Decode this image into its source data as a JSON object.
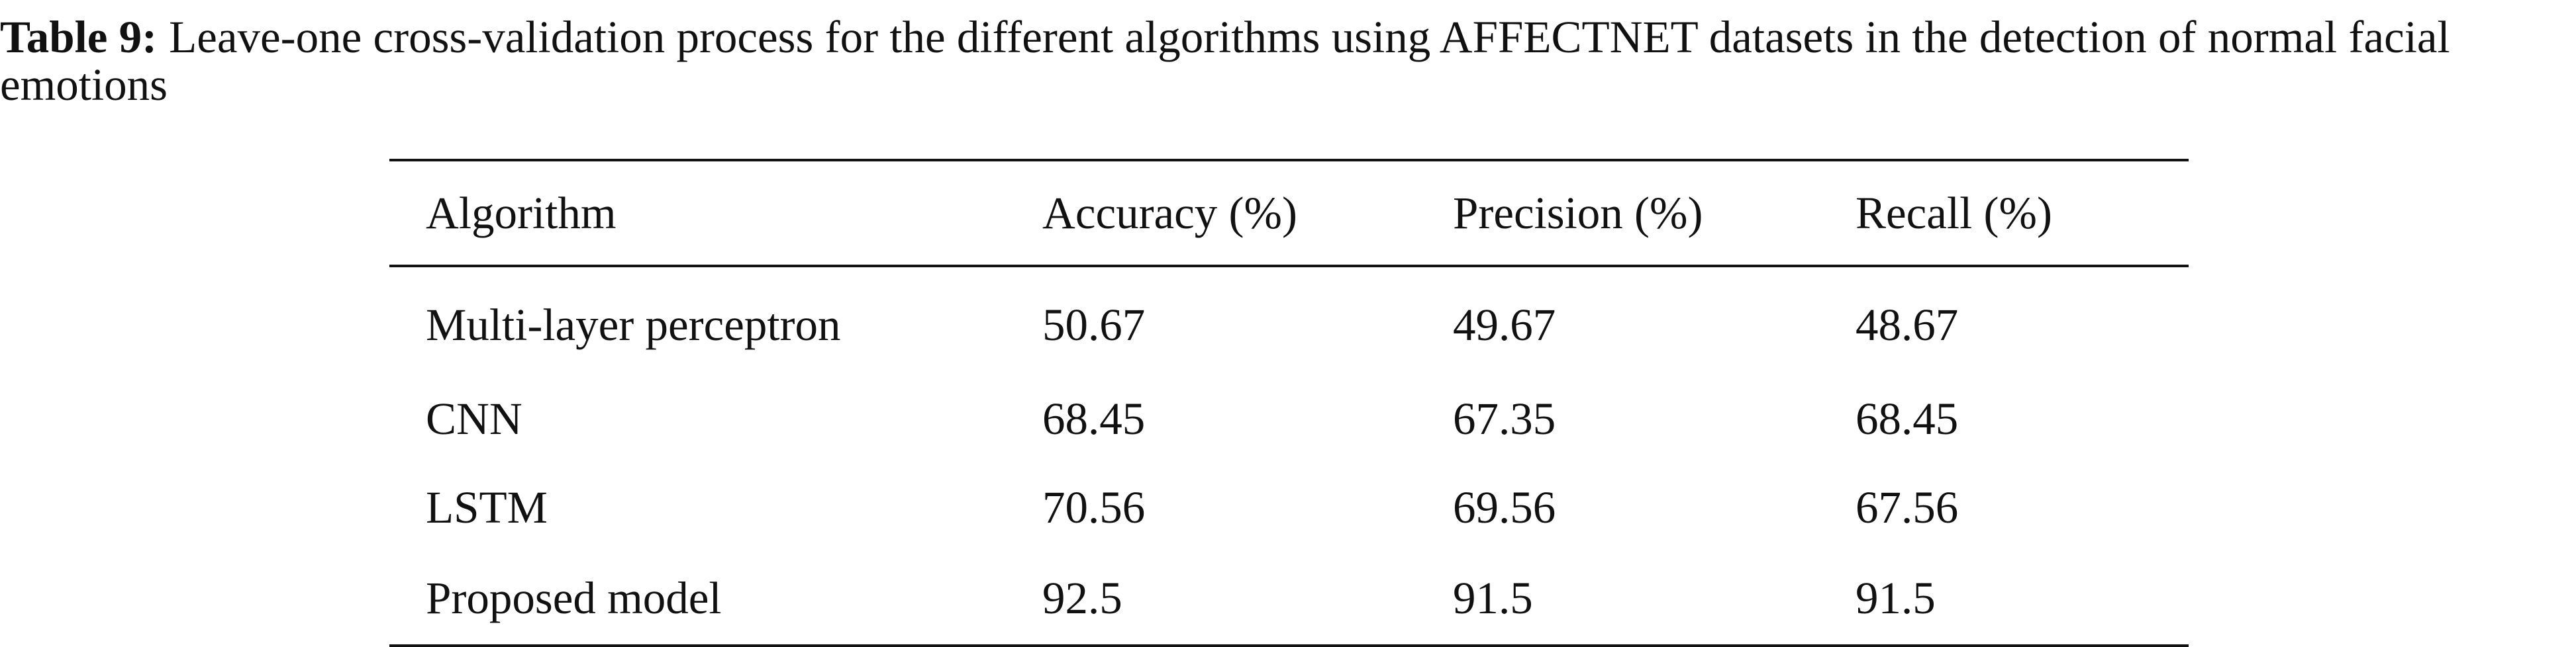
{
  "caption": {
    "label": "Table 9:",
    "text": "Leave-one cross-validation process for the different algorithms using AFFECTNET datasets in the detection of normal facial emotions"
  },
  "table": {
    "header": [
      "Algorithm",
      "Accuracy (%)",
      "Precision (%)",
      "Recall (%)"
    ],
    "rows": [
      [
        "Multi-layer perceptron",
        50.67,
        49.67,
        48.67
      ],
      [
        "CNN",
        68.45,
        67.35,
        68.45
      ],
      [
        "LSTM",
        70.56,
        69.56,
        67.56
      ],
      [
        "Proposed model",
        92.5,
        91.5,
        91.5
      ]
    ]
  }
}
